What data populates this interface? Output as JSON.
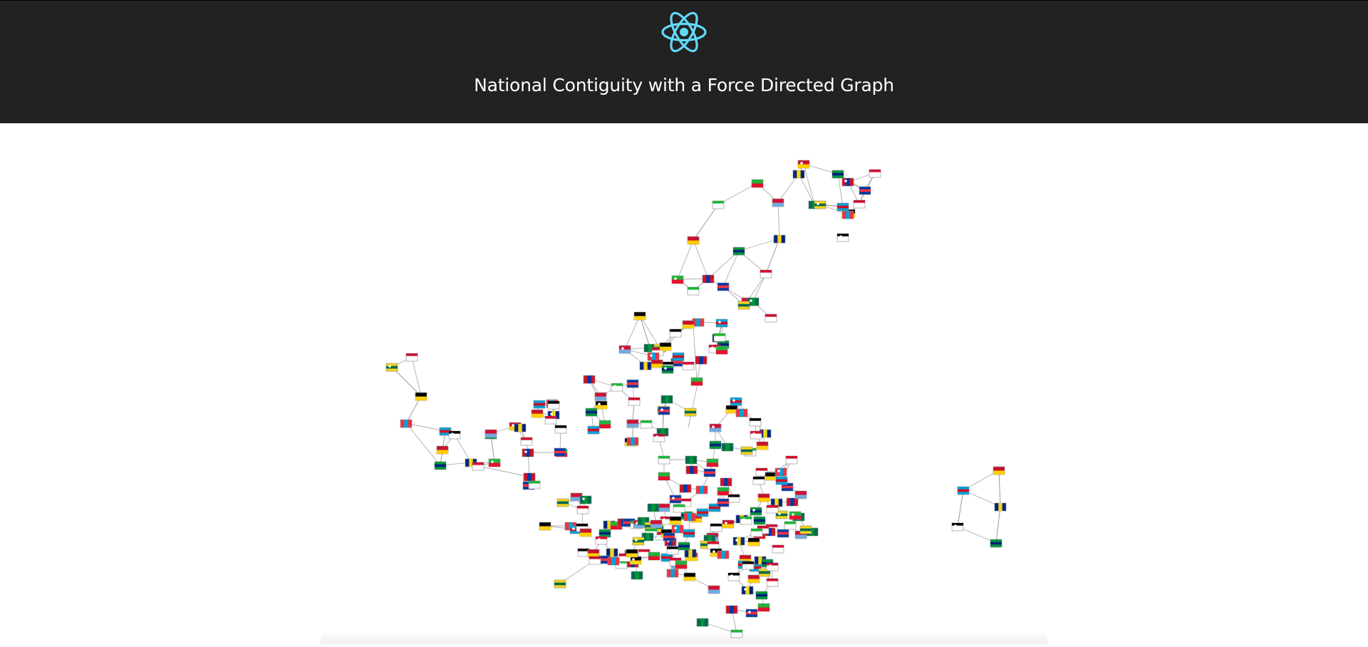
{
  "header": {
    "title": "National Contiguity with a Force Directed Graph",
    "logo_icon": "react-atom-icon",
    "logo_color": "#61dafb",
    "background": "#222222"
  },
  "graph": {
    "node_icon": "country-flag-icon",
    "link_color": "#999999",
    "component_count": 4
  },
  "colors": {
    "page_background": "#ffffff",
    "title_text": "#ffffff"
  }
}
